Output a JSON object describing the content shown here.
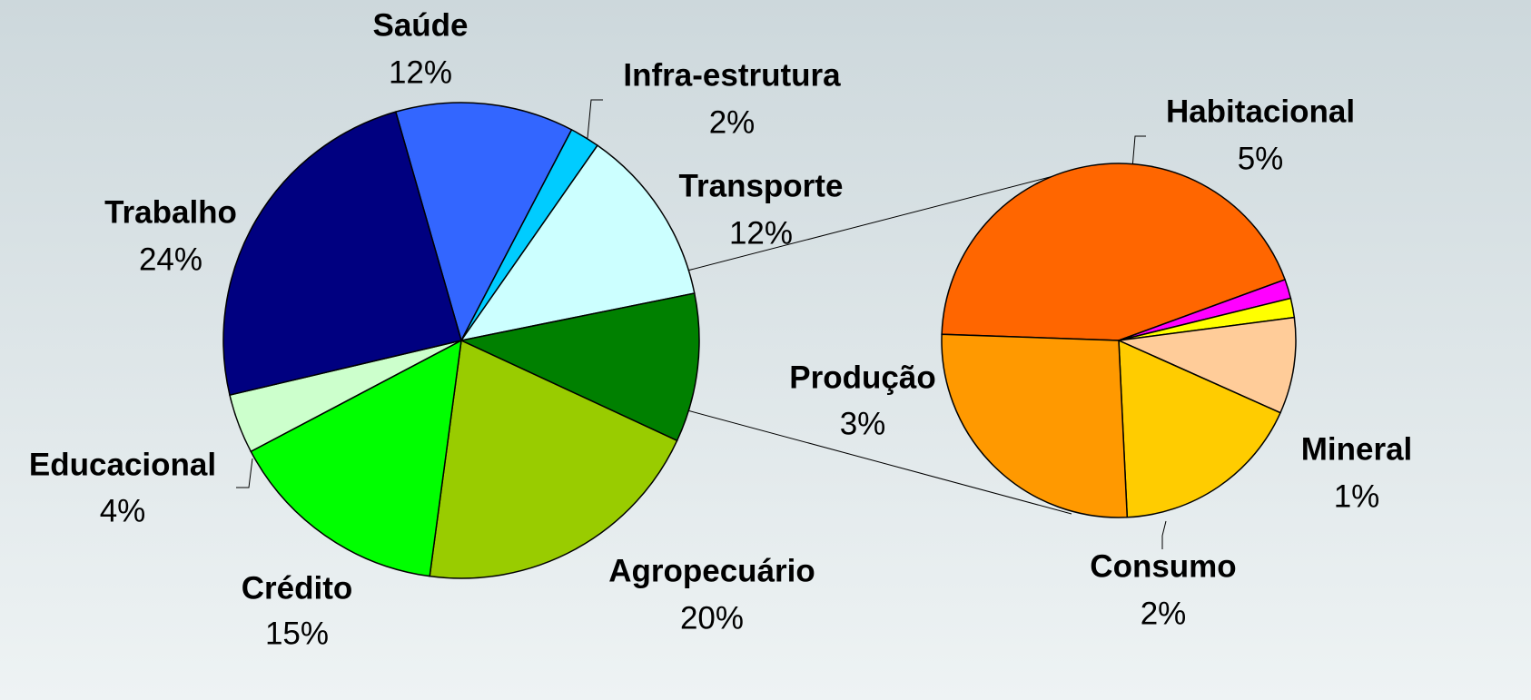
{
  "chart_data": [
    {
      "type": "pie",
      "categories": [
        "Saúde",
        "Infra-estrutura",
        "Transporte",
        null,
        "Agropecuário",
        "Crédito",
        "Educacional",
        "Trabalho"
      ],
      "values": [
        12,
        2,
        12,
        10,
        20,
        15,
        4,
        24
      ],
      "value_labels": [
        "12%",
        "2%",
        "12%",
        null,
        "20%",
        "15%",
        "4%",
        "24%"
      ],
      "colors": [
        "#3366ff",
        "#00ccff",
        "#ccffff",
        "#008000",
        "#99cc00",
        "#00ff00",
        "#ccffcc",
        "#000080"
      ]
    },
    {
      "type": "pie",
      "categories": [
        "Habitacional",
        null,
        null,
        "Mineral",
        "Consumo",
        "Produção"
      ],
      "values": [
        5,
        0.2,
        0.2,
        1,
        2,
        3
      ],
      "value_labels": [
        "5%",
        null,
        null,
        "1%",
        "2%",
        "3%"
      ],
      "colors": [
        "#ff6600",
        "#ff00ff",
        "#ffff00",
        "#ffcc99",
        "#ffcc00",
        "#ff9900"
      ]
    }
  ]
}
